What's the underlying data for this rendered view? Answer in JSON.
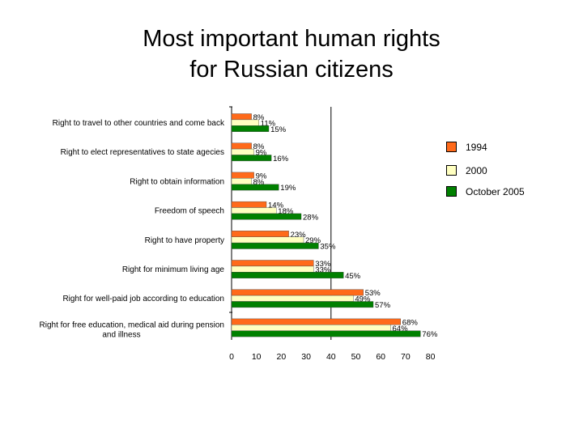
{
  "title": {
    "line1": "Most important human rights",
    "line2": "for Russian citizens"
  },
  "colors": {
    "1994": "#ff6a1a",
    "2000": "#ffffc0",
    "October 2005": "#008000"
  },
  "chart_data": {
    "type": "bar",
    "orientation": "horizontal",
    "title": "Most important human rights for Russian citizens",
    "categories": [
      "Right to travel to other countries and come back",
      "Right to elect representatives to state agecies",
      "Right to obtain information",
      "Freedom of speech",
      "Right to have property",
      "Right for minimum living age",
      "Right for well-paid job according to education",
      "Right for free education, medical aid during pension and illness"
    ],
    "category_lines": [
      [
        "Right to travel to other countries and come back"
      ],
      [
        "Right to elect representatives to state agecies"
      ],
      [
        "Right to obtain information"
      ],
      [
        "Freedom of speech"
      ],
      [
        "Right to have property"
      ],
      [
        "Right for minimum living age"
      ],
      [
        "Right for well-paid job according to education"
      ],
      [
        "Right for free education, medical aid during pension",
        "and illness"
      ]
    ],
    "series": [
      {
        "name": "1994",
        "values": [
          8,
          8,
          9,
          14,
          23,
          33,
          53,
          68
        ]
      },
      {
        "name": "2000",
        "values": [
          11,
          9,
          8,
          18,
          29,
          33,
          49,
          64
        ]
      },
      {
        "name": "October 2005",
        "values": [
          15,
          16,
          19,
          28,
          35,
          45,
          57,
          76
        ]
      }
    ],
    "value_suffix": "%",
    "xlim": [
      0,
      80
    ],
    "xticks": [
      0,
      10,
      20,
      30,
      40,
      50,
      60,
      70,
      80
    ],
    "legend_position": "right",
    "grid": false
  }
}
